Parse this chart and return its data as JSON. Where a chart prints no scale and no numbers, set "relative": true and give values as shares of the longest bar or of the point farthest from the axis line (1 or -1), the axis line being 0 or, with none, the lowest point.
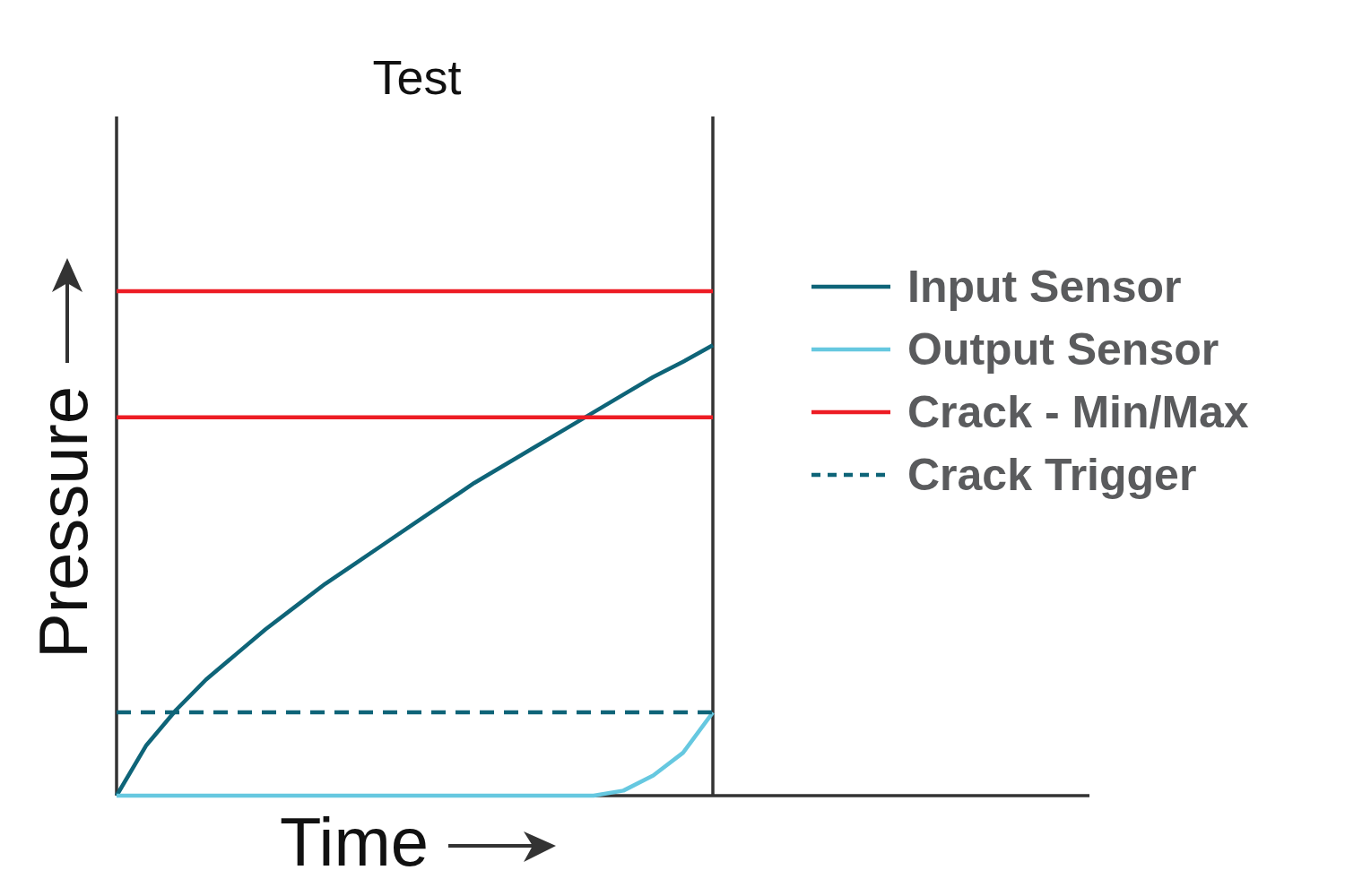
{
  "chart_data": {
    "type": "line",
    "title": "Test",
    "xlabel": "Time",
    "ylabel": "Pressure",
    "relative": true,
    "tick_labels": false,
    "legend": "right",
    "categories": [
      null,
      null,
      null,
      null,
      null,
      null,
      null,
      null,
      null,
      null,
      null,
      null,
      null,
      null,
      null,
      null,
      null,
      null,
      null,
      null,
      null
    ],
    "series": [
      {
        "name": "Input Sensor",
        "color": "#0e6478",
        "values": [
          0,
          0.1,
          0.17,
          0.23,
          0.28,
          0.33,
          0.375,
          0.42,
          0.46,
          0.5,
          0.54,
          0.58,
          0.62,
          0.655,
          0.69,
          0.725,
          0.76,
          0.795,
          0.83,
          0.86,
          0.893
        ]
      },
      {
        "name": "Output Sensor",
        "color": "#66c8e0",
        "values": [
          0,
          0,
          0,
          0,
          0,
          0,
          0,
          0,
          0,
          0,
          0,
          0,
          0,
          0,
          0,
          0,
          0,
          0.01,
          0.04,
          0.085,
          0.165
        ]
      },
      {
        "name": "Crack - Min/Max",
        "color": "#ed1c24",
        "values": [
          1,
          1,
          1,
          1,
          1,
          1,
          1,
          1,
          1,
          1,
          1,
          1,
          1,
          1,
          1,
          1,
          1,
          1,
          1,
          1,
          1
        ]
      },
      {
        "color": "#ed1c24",
        "values": [
          0.75,
          0.75,
          0.75,
          0.75,
          0.75,
          0.75,
          0.75,
          0.75,
          0.75,
          0.75,
          0.75,
          0.75,
          0.75,
          0.75,
          0.75,
          0.75,
          0.75,
          0.75,
          0.75,
          0.75,
          0.75
        ]
      },
      {
        "name": "Crack Trigger",
        "color": "#0e6478",
        "line_style": "dashed",
        "values": [
          0.165,
          0.165,
          0.165,
          0.165,
          0.165,
          0.165,
          0.165,
          0.165,
          0.165,
          0.165,
          0.165,
          0.165,
          0.165,
          0.165,
          0.165,
          0.165,
          0.165,
          0.165,
          0.165,
          0.165,
          0.165
        ]
      }
    ]
  }
}
